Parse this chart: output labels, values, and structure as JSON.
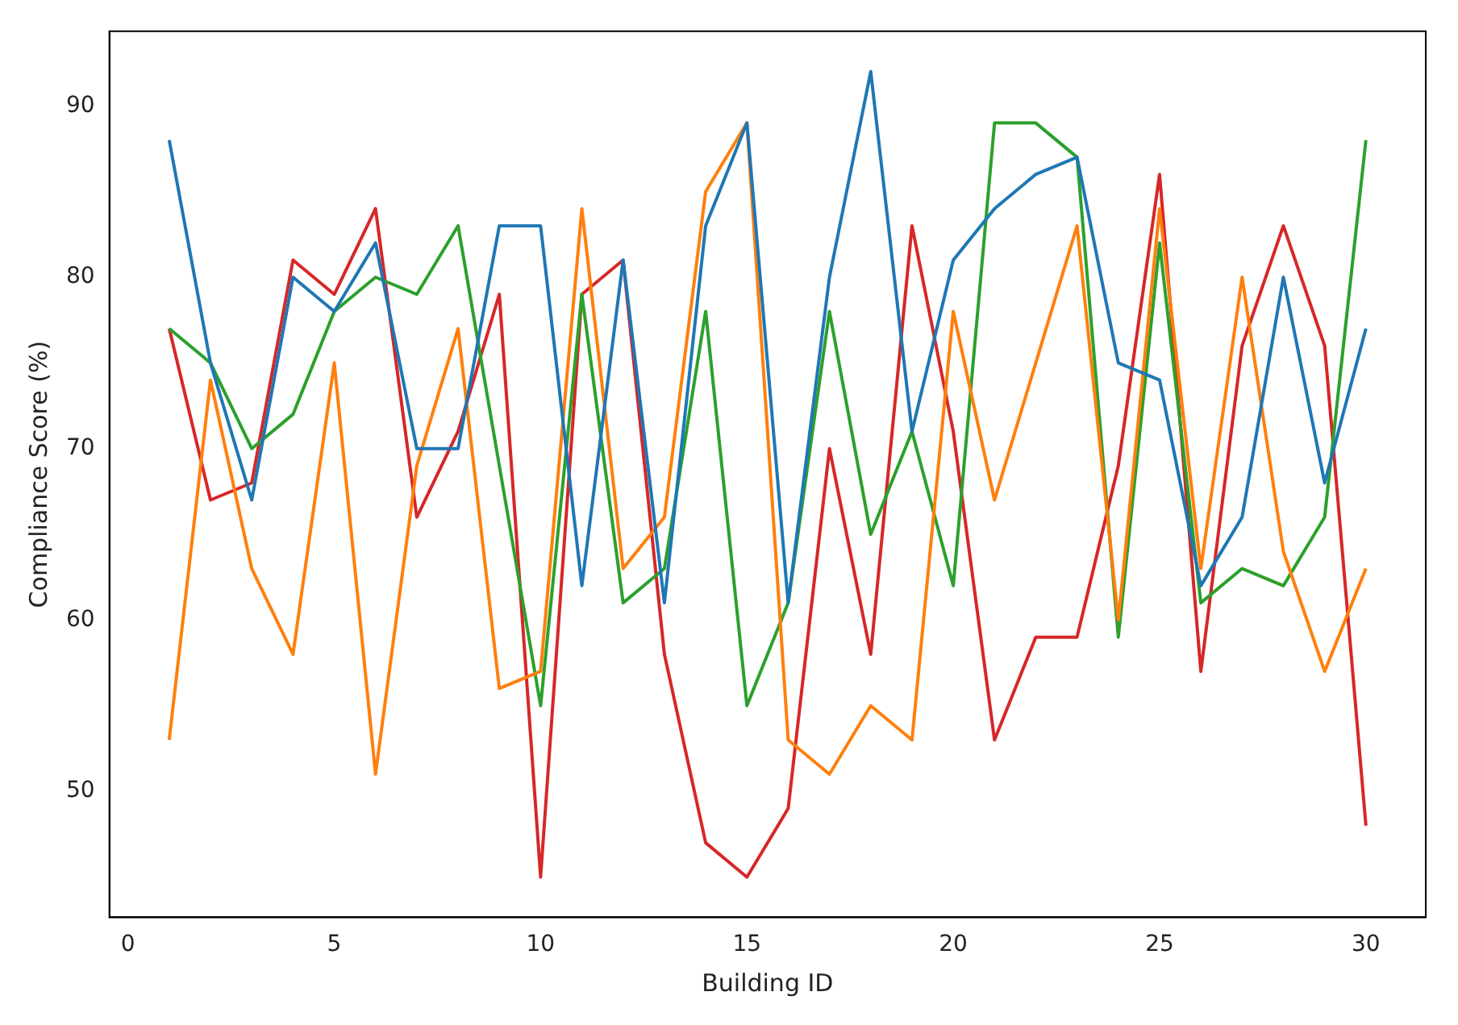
{
  "chart_data": {
    "type": "line",
    "xlabel": "Building ID",
    "ylabel": "Compliance Score (%)",
    "x": [
      1,
      2,
      3,
      4,
      5,
      6,
      7,
      8,
      9,
      10,
      11,
      12,
      13,
      14,
      15,
      16,
      17,
      18,
      19,
      20,
      21,
      22,
      23,
      24,
      25,
      26,
      27,
      28,
      29,
      30
    ],
    "series": [
      {
        "color": "#1f77b4",
        "values": [
          88,
          75,
          67,
          80,
          78,
          82,
          70,
          70,
          83,
          83,
          62,
          81,
          61,
          83,
          89,
          61,
          80,
          92,
          71,
          81,
          84,
          86,
          87,
          75,
          74,
          62,
          66,
          80,
          68,
          77
        ]
      },
      {
        "color": "#ff7f0e",
        "values": [
          53,
          74,
          63,
          58,
          75,
          51,
          69,
          77,
          56,
          57,
          84,
          63,
          66,
          85,
          89,
          53,
          51,
          55,
          53,
          78,
          67,
          75,
          83,
          60,
          84,
          63,
          80,
          64,
          57,
          63
        ]
      },
      {
        "color": "#2ca02c",
        "values": [
          77,
          75,
          70,
          72,
          78,
          80,
          79,
          83,
          69,
          55,
          79,
          61,
          63,
          78,
          55,
          61,
          78,
          65,
          71,
          62,
          89,
          89,
          87,
          59,
          82,
          61,
          63,
          62,
          66,
          88
        ]
      },
      {
        "color": "#d62728",
        "values": [
          77,
          67,
          68,
          81,
          79,
          84,
          66,
          71,
          79,
          45,
          79,
          81,
          58,
          47,
          45,
          49,
          70,
          58,
          83,
          71,
          53,
          59,
          59,
          69,
          86,
          57,
          76,
          83,
          76,
          48
        ]
      }
    ],
    "xlim": [
      -0.45,
      31.45
    ],
    "xticks": [
      0,
      5,
      10,
      15,
      20,
      25,
      30
    ],
    "ylim": [
      42.65,
      94.35
    ],
    "yticks": [
      50,
      60,
      70,
      80,
      90
    ],
    "grid": false,
    "legend": false,
    "marker": "none",
    "line_style": "solid"
  }
}
